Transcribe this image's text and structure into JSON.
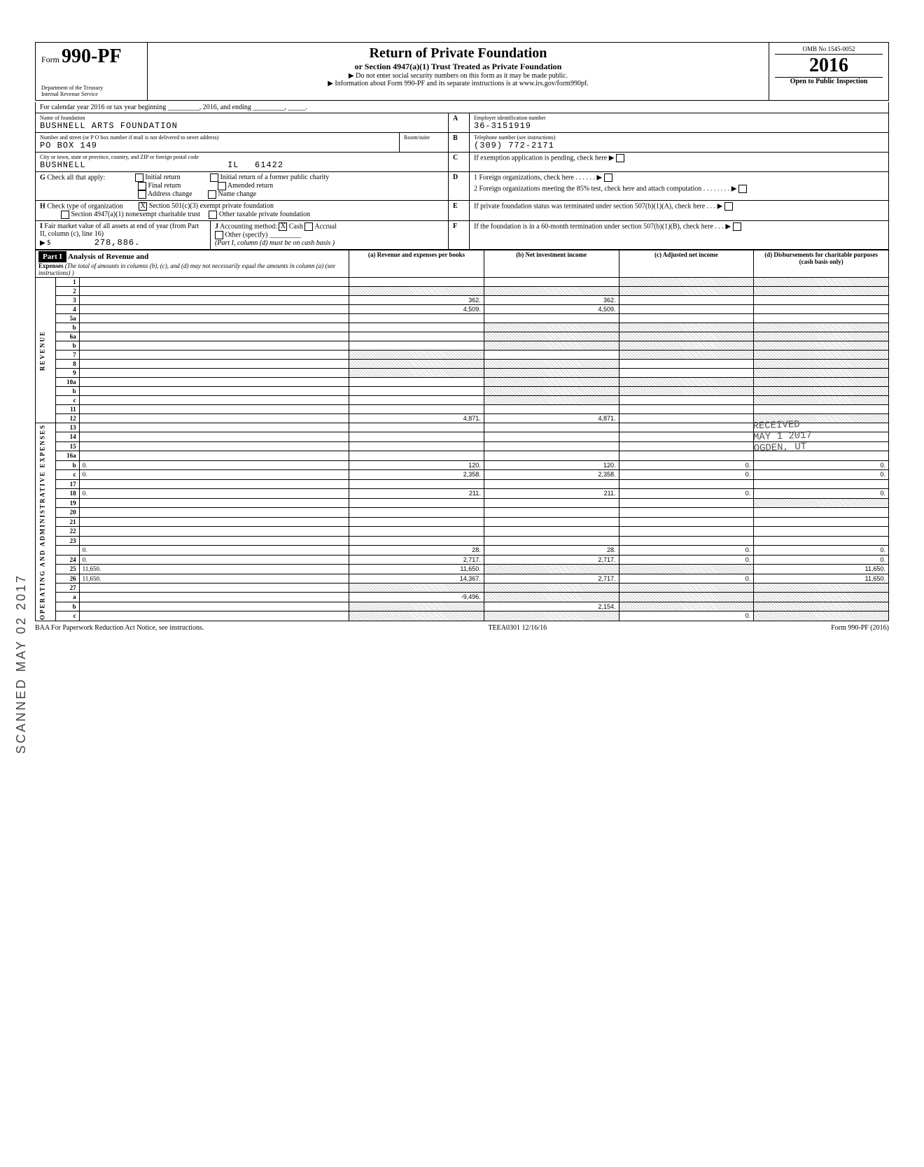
{
  "header": {
    "form_prefix": "Form",
    "form_number": "990-PF",
    "dept": "Department of the Treasury\nInternal Revenue Service",
    "title": "Return of Private Foundation",
    "subtitle": "or Section 4947(a)(1) Trust Treated as Private Foundation",
    "warn": "▶ Do not enter social security numbers on this form as it may be made public.",
    "info": "▶ Information about Form 990-PF and its separate instructions is at www.irs.gov/form990pf.",
    "omb": "OMB No 1545-0052",
    "year": "2016",
    "open": "Open to Public Inspection"
  },
  "calendar": "For calendar year 2016 or tax year beginning _________, 2016, and ending _________, _____.",
  "foundation": {
    "name_label": "Name of foundation",
    "name": "BUSHNELL ARTS FOUNDATION",
    "addr_label": "Number and street (or P O box number if mail is not delivered to street address)",
    "addr": "PO BOX 149",
    "city_label": "City or town, state or province, country, and ZIP or foreign postal code",
    "city": "BUSHNELL",
    "state": "IL",
    "zip": "61422",
    "room_label": "Room/suite"
  },
  "right_col": {
    "A_label": "Employer identification number",
    "A_val": "36-3151919",
    "B_label": "Telephone number (see instructions)",
    "B_val": "(309) 772-2171",
    "C_label": "If exemption application is pending, check here ▶",
    "D1_label": "1 Foreign organizations, check here . . . . . . ▶",
    "D2_label": "2 Foreign organizations meeting the 85% test, check here and attach computation . . . . . . . . ▶",
    "E_label": "If private foundation status was terminated under section 507(b)(1)(A), check here . . . ▶",
    "F_label": "If the foundation is in a 60-month termination under section 507(b)(1)(B), check here . . . ▶"
  },
  "G": {
    "label": "Check all that apply:",
    "opts": [
      "Initial return",
      "Final return",
      "Address change",
      "Initial return of a former public charity",
      "Amended return",
      "Name change"
    ]
  },
  "H": {
    "label": "Check type of organization",
    "opt1": "Section 501(c)(3) exempt private foundation",
    "opt1_checked": "X",
    "opt2": "Section 4947(a)(1) nonexempt charitable trust",
    "opt3": "Other taxable private foundation"
  },
  "I": {
    "label": "Fair market value of all assets at end of year (from Part II, column (c), line 16)",
    "val": "278,886."
  },
  "J": {
    "label": "Accounting method:",
    "cash": "Cash",
    "cash_checked": "X",
    "accrual": "Accrual",
    "other": "Other (specify)",
    "note": "(Part I, column (d) must be on cash basis )"
  },
  "part1": {
    "tag": "Part I",
    "title": "Analysis of Revenue and",
    "expenses_label": "Expenses",
    "instr": "(The total of amounts in columns (b), (c), and (d) may not necessarily equal the amounts in column (a) (see instructions) )",
    "col_a": "(a) Revenue and expenses per books",
    "col_b": "(b) Net investment income",
    "col_c": "(c) Adjusted net income",
    "col_d": "(d) Disbursements for charitable purposes (cash basis only)",
    "side_rev": "REVENUE",
    "side_op": "OPERATING AND ADMINISTRATIVE EXPENSES"
  },
  "lines": [
    {
      "n": "1",
      "d": "",
      "a": "",
      "b": "",
      "c": "",
      "sh_c": true,
      "sh_d": true
    },
    {
      "n": "2",
      "d": "",
      "a": "",
      "b": "",
      "c": "",
      "sh_a": true,
      "sh_b": true,
      "sh_c": true,
      "sh_d": true
    },
    {
      "n": "3",
      "d": "",
      "a": "362.",
      "b": "362.",
      "c": ""
    },
    {
      "n": "4",
      "d": "",
      "a": "4,509.",
      "b": "4,509.",
      "c": ""
    },
    {
      "n": "5a",
      "d": "",
      "a": "",
      "b": "",
      "c": ""
    },
    {
      "n": "b",
      "d": "",
      "a": "",
      "b": "",
      "c": "",
      "sh_b": true,
      "sh_c": true,
      "sh_d": true
    },
    {
      "n": "6a",
      "d": "",
      "a": "",
      "b": "",
      "c": "",
      "sh_b": true,
      "sh_c": true,
      "sh_d": true
    },
    {
      "n": "b",
      "d": "",
      "a": "",
      "b": "",
      "c": "",
      "sh_b": true,
      "sh_c": true,
      "sh_d": true
    },
    {
      "n": "7",
      "d": "",
      "a": "",
      "b": "",
      "c": "",
      "sh_a": true,
      "sh_c": true,
      "sh_d": true
    },
    {
      "n": "8",
      "d": "",
      "a": "",
      "b": "",
      "c": "",
      "sh_a": true,
      "sh_b": true,
      "sh_d": true
    },
    {
      "n": "9",
      "d": "",
      "a": "",
      "b": "",
      "c": "",
      "sh_a": true,
      "sh_b": true,
      "sh_d": true
    },
    {
      "n": "10a",
      "d": "",
      "a": "",
      "b": "",
      "c": "",
      "sh_b": true,
      "sh_c": true,
      "sh_d": true
    },
    {
      "n": "b",
      "d": "",
      "a": "",
      "b": "",
      "c": "",
      "sh_b": true,
      "sh_c": true,
      "sh_d": true
    },
    {
      "n": "c",
      "d": "",
      "a": "",
      "b": "",
      "c": "",
      "sh_b": true,
      "sh_d": true
    },
    {
      "n": "11",
      "d": "",
      "a": "",
      "b": "",
      "c": ""
    },
    {
      "n": "12",
      "d": "",
      "a": "4,871.",
      "b": "4,871.",
      "c": "",
      "sh_d": true
    },
    {
      "n": "13",
      "d": "",
      "a": "",
      "b": "",
      "c": ""
    },
    {
      "n": "14",
      "d": "",
      "a": "",
      "b": "",
      "c": ""
    },
    {
      "n": "15",
      "d": "",
      "a": "",
      "b": "",
      "c": ""
    },
    {
      "n": "16a",
      "d": "",
      "a": "",
      "b": "",
      "c": ""
    },
    {
      "n": "b",
      "d": "0.",
      "a": "120.",
      "b": "120.",
      "c": "0."
    },
    {
      "n": "c",
      "d": "0.",
      "a": "2,358.",
      "b": "2,358.",
      "c": "0."
    },
    {
      "n": "17",
      "d": "",
      "a": "",
      "b": "",
      "c": ""
    },
    {
      "n": "18",
      "d": "0.",
      "a": "211.",
      "b": "211.",
      "c": "0."
    },
    {
      "n": "19",
      "d": "",
      "a": "",
      "b": "",
      "c": "",
      "sh_d": true
    },
    {
      "n": "20",
      "d": "",
      "a": "",
      "b": "",
      "c": ""
    },
    {
      "n": "21",
      "d": "",
      "a": "",
      "b": "",
      "c": ""
    },
    {
      "n": "22",
      "d": "",
      "a": "",
      "b": "",
      "c": ""
    },
    {
      "n": "23",
      "d": "",
      "a": "",
      "b": "",
      "c": ""
    },
    {
      "n": "",
      "d": "0.",
      "a": "28.",
      "b": "28.",
      "c": "0."
    },
    {
      "n": "24",
      "d": "0.",
      "a": "2,717.",
      "b": "2,717.",
      "c": "0."
    },
    {
      "n": "25",
      "d": "11,650.",
      "a": "11,650.",
      "b": "",
      "c": "",
      "sh_b": true,
      "sh_c": true
    },
    {
      "n": "26",
      "d": "11,650.",
      "a": "14,367.",
      "b": "2,717.",
      "c": "0."
    },
    {
      "n": "27",
      "d": "",
      "a": "",
      "b": "",
      "c": "",
      "sh_a": true,
      "sh_b": true,
      "sh_c": true,
      "sh_d": true
    },
    {
      "n": "a",
      "d": "",
      "a": "-9,496.",
      "b": "",
      "c": "",
      "sh_b": true,
      "sh_c": true,
      "sh_d": true
    },
    {
      "n": "b",
      "d": "",
      "a": "",
      "b": "2,154.",
      "c": "",
      "sh_a": true,
      "sh_c": true,
      "sh_d": true
    },
    {
      "n": "c",
      "d": "",
      "a": "",
      "b": "",
      "c": "0.",
      "sh_a": true,
      "sh_b": true,
      "sh_d": true
    }
  ],
  "footer": {
    "left": "BAA  For Paperwork Reduction Act Notice, see instructions.",
    "mid": "TEEA0301   12/16/16",
    "right": "Form 990-PF (2016)"
  },
  "stamp": "SCANNED MAY 02 2017",
  "recv_stamp": {
    "l1": "RECEIVED",
    "l2": "MAY 1 2017",
    "l3": "OGDEN, UT"
  },
  "colors": {
    "border": "#000000",
    "shade": "#cccccc",
    "text": "#000000"
  }
}
